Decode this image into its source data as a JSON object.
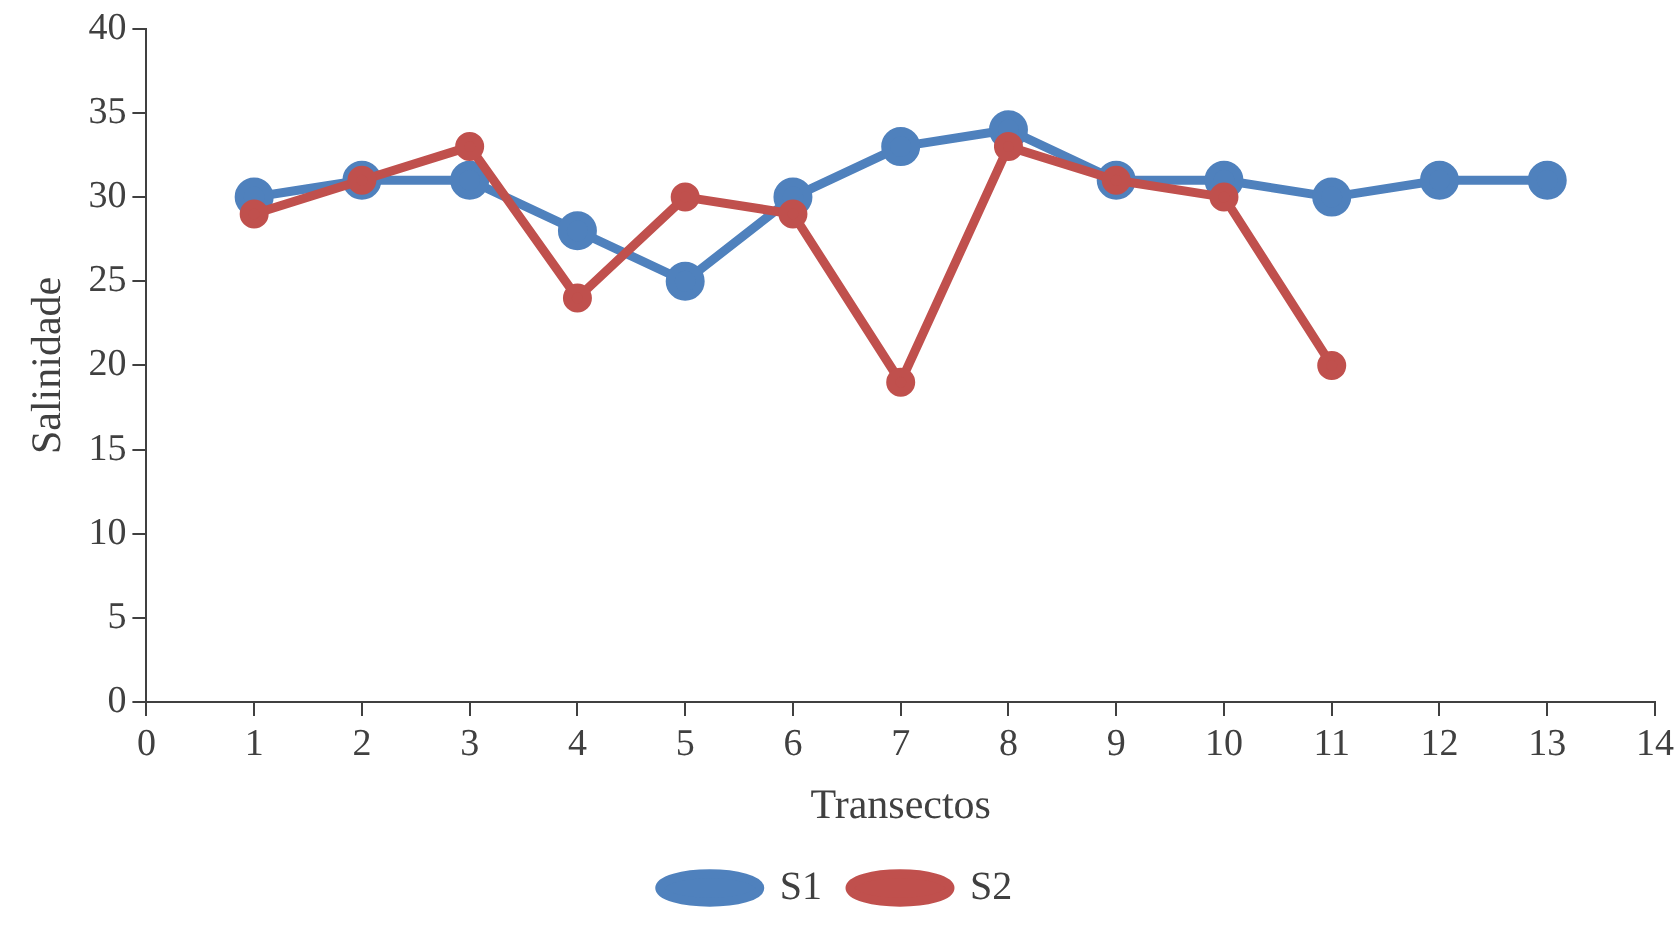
{
  "chart_data": {
    "type": "line",
    "xlabel": "Transectos",
    "ylabel": "Salinidade",
    "xlim": [
      0,
      14
    ],
    "xticks": [
      0,
      1,
      2,
      3,
      4,
      5,
      6,
      7,
      8,
      9,
      10,
      11,
      12,
      13,
      14
    ],
    "ylim": [
      0,
      40
    ],
    "yticks": [
      0,
      5,
      10,
      15,
      20,
      25,
      30,
      35,
      40
    ],
    "grid": false,
    "legend": "bottom",
    "marker": "circle",
    "line_style": "solid",
    "series": [
      {
        "name": "S1",
        "color": "#4f81bd",
        "x": [
          1,
          2,
          3,
          4,
          5,
          6,
          7,
          8,
          9,
          10,
          11,
          12,
          13
        ],
        "values": [
          30,
          31,
          31,
          28,
          25,
          30,
          33,
          34,
          31,
          31,
          30,
          31,
          31
        ]
      },
      {
        "name": "S2",
        "color": "#c0504d",
        "x": [
          1,
          2,
          3,
          4,
          5,
          6,
          7,
          8,
          9,
          10,
          11
        ],
        "values": [
          29,
          31,
          33,
          24,
          30,
          29,
          19,
          33,
          31,
          30,
          20
        ]
      }
    ]
  }
}
